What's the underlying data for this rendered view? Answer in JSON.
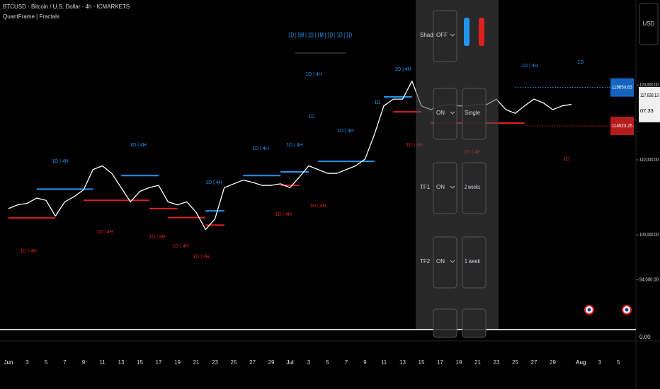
{
  "header": {
    "symbol": "BTCUSD · Bitcoin / U.S. Dollar · 4h · ICMARKETS",
    "indicator": "QuantFrame | Fractals"
  },
  "timeframe_legend": "1D | 5M | 1D | 1M | 1D | 1D | 1D",
  "settings_panel": {
    "rows": [
      {
        "label": "Shades",
        "state": "OFF"
      },
      {
        "state": "ON",
        "mode": "Single"
      },
      {
        "label": "TF1",
        "state": "ON",
        "mode": "2 weeks"
      },
      {
        "label": "TF2",
        "state": "ON",
        "mode": "1 week"
      }
    ]
  },
  "price_axis": {
    "currency": "USD",
    "countdown": "07:33",
    "lower_pane_value": "0.00"
  },
  "annotations": [
    {
      "text": "1D | 4H",
      "color": "#2196f3"
    },
    {
      "text": "1D | 4H",
      "color": "#2196f3"
    },
    {
      "text": "1D | 4H",
      "color": "#2196f3"
    },
    {
      "text": "1D | 4H",
      "color": "#2196f3"
    },
    {
      "text": "1D | 4H",
      "color": "#2196f3"
    },
    {
      "text": "1D",
      "color": "#2196f3"
    },
    {
      "text": "1D | 4H",
      "color": "#2196f3"
    },
    {
      "text": "1D",
      "color": "#2196f3"
    },
    {
      "text": "1D | 4H",
      "color": "#2196f3"
    },
    {
      "text": "1D | 4H",
      "color": "#2196f3"
    },
    {
      "text": "1D",
      "color": "#2196f3"
    },
    {
      "text": "1D | 4H",
      "color": "#2196f3"
    },
    {
      "text": "1D | 4H",
      "color": "#e02020"
    },
    {
      "text": "1D | 4H",
      "color": "#e02020"
    },
    {
      "text": "1D | 4H",
      "color": "#e02020"
    },
    {
      "text": "1D | 4H",
      "color": "#e02020"
    },
    {
      "text": "1D | 4H",
      "color": "#e02020"
    },
    {
      "text": "1D | 4H",
      "color": "#e02020"
    },
    {
      "text": "1D | 4H",
      "color": "#e02020"
    },
    {
      "text": "1D | 4H",
      "color": "#e02020"
    },
    {
      "text": "1D | 4H",
      "color": "#e02020"
    },
    {
      "text": "1D",
      "color": "#e02020"
    }
  ],
  "chart_data": {
    "type": "line",
    "categories": [
      "Jun",
      null,
      "3",
      null,
      "5",
      null,
      "7",
      null,
      "9",
      null,
      "11",
      null,
      "13",
      null,
      "15",
      null,
      "17",
      null,
      "19",
      null,
      "21",
      null,
      "23",
      null,
      "25",
      null,
      "27",
      null,
      "29",
      null,
      "Jul",
      null,
      "3",
      null,
      "5",
      null,
      "7",
      null,
      "9",
      null,
      "11",
      null,
      "13",
      null,
      "15",
      null,
      "17",
      null,
      "19",
      null,
      "21",
      null,
      "23",
      null,
      "25",
      null,
      "27",
      null,
      "29",
      null,
      null,
      "Aug",
      null,
      "3",
      null,
      "5"
    ],
    "series": [
      {
        "name": "BTCUSD",
        "color": "#ffffff",
        "values": [
          103500,
          104000,
          104200,
          104900,
          104600,
          102500,
          104400,
          105100,
          106000,
          108700,
          109200,
          108200,
          106300,
          104400,
          105800,
          106300,
          106600,
          104400,
          104000,
          104400,
          103000,
          100700,
          102100,
          106300,
          106800,
          107300,
          107000,
          106600,
          106600,
          106800,
          106300,
          107700,
          109200,
          108700,
          108200,
          108200,
          108700,
          109200,
          110100,
          113400,
          117200,
          118100,
          118100,
          120500,
          117200,
          116700,
          117200,
          117400,
          117200,
          117200,
          117400,
          117400,
          118100,
          116700,
          116200,
          117200,
          118100,
          117600,
          116700,
          117200,
          117400,
          null,
          null,
          null,
          null,
          null
        ]
      }
    ],
    "levels": [
      {
        "color": "#2196f3",
        "value": 106100,
        "start": 3,
        "end": 9
      },
      {
        "color": "#2196f3",
        "value": 107900,
        "start": 12,
        "end": 16
      },
      {
        "color": "#2196f3",
        "value": 103200,
        "start": 21,
        "end": 23
      },
      {
        "color": "#2196f3",
        "value": 107900,
        "start": 25,
        "end": 29
      },
      {
        "color": "#2196f3",
        "value": 108400,
        "start": 29,
        "end": 32
      },
      {
        "color": "#2196f3",
        "value": 109800,
        "start": 33,
        "end": 39
      },
      {
        "color": "#2196f3",
        "value": 118400,
        "start": 40,
        "end": 43
      },
      {
        "color": "#2196f3",
        "value": 119654.63,
        "start": 54,
        "end": 64
      },
      {
        "color": "#e02020",
        "value": 102250,
        "start": 0,
        "end": 5
      },
      {
        "color": "#e02020",
        "value": 104600,
        "start": 8,
        "end": 15
      },
      {
        "color": "#e02020",
        "value": 103500,
        "start": 15,
        "end": 18
      },
      {
        "color": "#e02020",
        "value": 102300,
        "start": 17,
        "end": 21
      },
      {
        "color": "#e02020",
        "value": 101300,
        "start": 21,
        "end": 23
      },
      {
        "color": "#e02020",
        "value": 106600,
        "start": 29,
        "end": 31
      },
      {
        "color": "#e02020",
        "value": 116400,
        "start": 41,
        "end": 44
      },
      {
        "color": "#e02020",
        "value": 114900,
        "start": 45,
        "end": 55
      },
      {
        "color": "#e02020",
        "value": 114523.25,
        "start": 55,
        "end": 64
      }
    ],
    "last_price": {
      "value": 117838.13,
      "label": "117,838.13"
    },
    "ylim": [
      87453,
      131320
    ],
    "yticks": [
      {
        "value": 120000,
        "label": "120,000.00"
      },
      {
        "value": 110000,
        "label": "110,000.00"
      },
      {
        "value": 100000,
        "label": "100,000.00"
      },
      {
        "value": 94000,
        "label": "94,000.00"
      }
    ]
  }
}
